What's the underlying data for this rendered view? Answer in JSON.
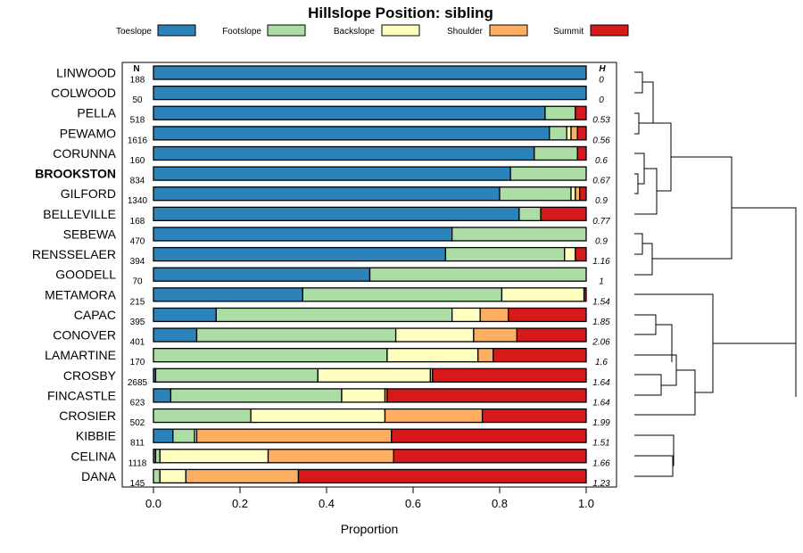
{
  "chart_data": {
    "type": "bar",
    "orientation": "horizontal",
    "stacked": true,
    "title": "Hillslope Position: sibling",
    "xlabel": "Proportion",
    "ylabel": "",
    "xlim": [
      0,
      1
    ],
    "x_ticks": [
      "0.0",
      "0.2",
      "0.4",
      "0.6",
      "0.8",
      "1.0"
    ],
    "legend": {
      "position": "top",
      "entries": [
        {
          "name": "Toeslope",
          "color": "#2b83ba"
        },
        {
          "name": "Footslope",
          "color": "#abdda4"
        },
        {
          "name": "Backslope",
          "color": "#ffffbf"
        },
        {
          "name": "Shoulder",
          "color": "#fdae61"
        },
        {
          "name": "Summit",
          "color": "#d7191c"
        }
      ]
    },
    "n_header": "N",
    "h_header": "H",
    "categories": [
      "LINWOOD",
      "COLWOOD",
      "PELLA",
      "PEWAMO",
      "CORUNNA",
      "BROOKSTON",
      "GILFORD",
      "BELLEVILLE",
      "SEBEWA",
      "RENSSELAER",
      "GOODELL",
      "METAMORA",
      "CAPAC",
      "CONOVER",
      "LAMARTINE",
      "CROSBY",
      "FINCASTLE",
      "CROSIER",
      "KIBBIE",
      "CELINA",
      "DANA"
    ],
    "highlight": "BROOKSTON",
    "n": [
      "188",
      "50",
      "518",
      "1616",
      "160",
      "834",
      "1340",
      "168",
      "470",
      "394",
      "70",
      "215",
      "395",
      "401",
      "170",
      "2685",
      "623",
      "502",
      "811",
      "1118",
      "145"
    ],
    "h": [
      "0",
      "0",
      "0.53",
      "0.56",
      "0.6",
      "0.67",
      "0.9",
      "0.77",
      "0.9",
      "1.16",
      "1",
      "1.54",
      "1.85",
      "2.06",
      "1.6",
      "1.64",
      "1.64",
      "1.99",
      "1.51",
      "1.66",
      "1.23"
    ],
    "series": [
      {
        "name": "Toeslope",
        "values": [
          1.0,
          1.0,
          0.905,
          0.915,
          0.88,
          0.825,
          0.8,
          0.845,
          0.69,
          0.675,
          0.5,
          0.345,
          0.145,
          0.1,
          0.0,
          0.005,
          0.04,
          0.0,
          0.045,
          0.005,
          0.0
        ]
      },
      {
        "name": "Footslope",
        "values": [
          0.0,
          0.0,
          0.07,
          0.04,
          0.1,
          0.175,
          0.165,
          0.05,
          0.31,
          0.275,
          0.5,
          0.46,
          0.545,
          0.46,
          0.54,
          0.375,
          0.395,
          0.225,
          0.05,
          0.01,
          0.015
        ]
      },
      {
        "name": "Backslope",
        "values": [
          0.0,
          0.0,
          0.0,
          0.01,
          0.0,
          0.0,
          0.01,
          0.0,
          0.0,
          0.025,
          0.0,
          0.19,
          0.065,
          0.18,
          0.21,
          0.26,
          0.1,
          0.31,
          0.005,
          0.25,
          0.06
        ]
      },
      {
        "name": "Shoulder",
        "values": [
          0.0,
          0.0,
          0.0,
          0.015,
          0.0,
          0.0,
          0.01,
          0.0,
          0.0,
          0.0,
          0.0,
          0.0,
          0.065,
          0.1,
          0.035,
          0.005,
          0.005,
          0.225,
          0.45,
          0.29,
          0.26
        ]
      },
      {
        "name": "Summit",
        "values": [
          0.0,
          0.0,
          0.025,
          0.02,
          0.02,
          0.0,
          0.015,
          0.105,
          0.0,
          0.025,
          0.0,
          0.005,
          0.18,
          0.16,
          0.215,
          0.355,
          0.46,
          0.24,
          0.45,
          0.445,
          0.665
        ]
      }
    ],
    "dendrogram": true
  }
}
